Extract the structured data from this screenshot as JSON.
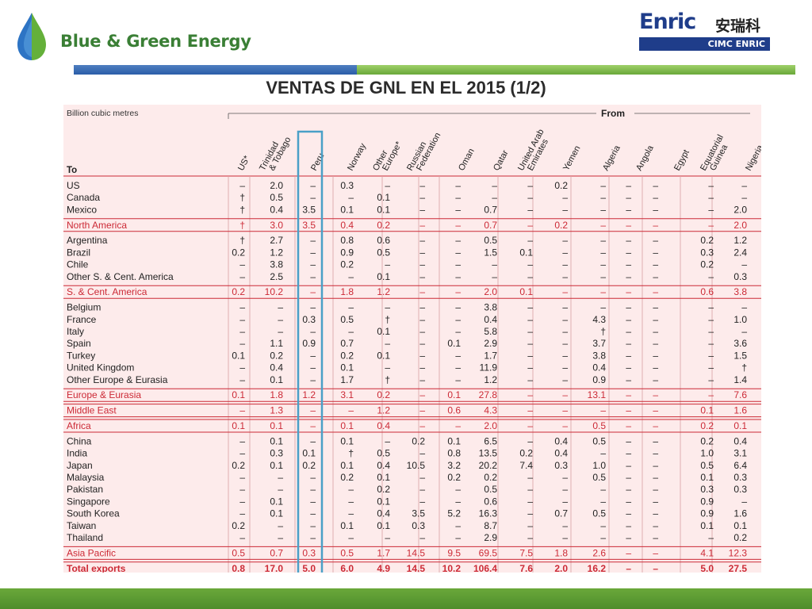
{
  "brand": {
    "name": "Blue & Green Energy",
    "partner_name": "Enric",
    "partner_chinese": "安瑞科",
    "partner_sub": "CIMC ENRIC"
  },
  "slide_title": "VENTAS DE GNL EN EL 2015 (1/2)",
  "colors": {
    "row_highlight": "#cc2a36",
    "panel_bg": "#fdebeb",
    "peru_box": "#4aa0c7",
    "title_green": "#3a7f35",
    "bar_blue": "#2a5da8",
    "bar_green": "#6aa83a"
  },
  "chart_data": {
    "type": "table",
    "unit_label": "Billion cubic metres",
    "from_label": "From",
    "row_header_label": "To",
    "columns": [
      "US*",
      "Trinidad & Tobago",
      "Peru",
      "Norway",
      "Other Europe*",
      "Russian Federation",
      "Oman",
      "Qatar",
      "United Arab Emirates",
      "Yemen",
      "Algeria",
      "Angola",
      "Egypt",
      "Equatorial Guinea",
      "Nigeria"
    ],
    "highlighted_column": "Peru",
    "rows": [
      {
        "label": "US",
        "type": "item",
        "values": [
          "–",
          "2.0",
          "–",
          "0.3",
          "–",
          "–",
          "–",
          "–",
          "–",
          "0.2",
          "–",
          "–",
          "–",
          "–",
          "–"
        ]
      },
      {
        "label": "Canada",
        "type": "item",
        "values": [
          "†",
          "0.5",
          "–",
          "–",
          "0.1",
          "–",
          "–",
          "–",
          "–",
          "–",
          "–",
          "–",
          "–",
          "–",
          "–"
        ]
      },
      {
        "label": "Mexico",
        "type": "item",
        "values": [
          "†",
          "0.4",
          "3.5",
          "0.1",
          "0.1",
          "–",
          "–",
          "0.7",
          "–",
          "–",
          "–",
          "–",
          "–",
          "–",
          "2.0"
        ]
      },
      {
        "label": "North America",
        "type": "total",
        "values": [
          "†",
          "3.0",
          "3.5",
          "0.4",
          "0.2",
          "–",
          "–",
          "0.7",
          "–",
          "0.2",
          "–",
          "–",
          "–",
          "–",
          "2.0"
        ]
      },
      {
        "label": "Argentina",
        "type": "item",
        "values": [
          "†",
          "2.7",
          "–",
          "0.8",
          "0.6",
          "–",
          "–",
          "0.5",
          "–",
          "–",
          "–",
          "–",
          "–",
          "0.2",
          "1.2"
        ]
      },
      {
        "label": "Brazil",
        "type": "item",
        "values": [
          "0.2",
          "1.2",
          "–",
          "0.9",
          "0.5",
          "–",
          "–",
          "1.5",
          "0.1",
          "–",
          "–",
          "–",
          "–",
          "0.3",
          "2.4"
        ]
      },
      {
        "label": "Chile",
        "type": "item",
        "values": [
          "–",
          "3.8",
          "–",
          "0.2",
          "–",
          "–",
          "–",
          "–",
          "–",
          "–",
          "–",
          "–",
          "–",
          "0.2",
          "–"
        ]
      },
      {
        "label": "Other S. & Cent. America",
        "type": "item",
        "values": [
          "–",
          "2.5",
          "–",
          "–",
          "0.1",
          "–",
          "–",
          "–",
          "–",
          "–",
          "–",
          "–",
          "–",
          "–",
          "0.3"
        ]
      },
      {
        "label": "S. & Cent. America",
        "type": "total",
        "values": [
          "0.2",
          "10.2",
          "–",
          "1.8",
          "1.2",
          "–",
          "–",
          "2.0",
          "0.1",
          "–",
          "–",
          "–",
          "–",
          "0.6",
          "3.8"
        ]
      },
      {
        "label": "Belgium",
        "type": "item",
        "values": [
          "–",
          "–",
          "–",
          "–",
          "–",
          "–",
          "–",
          "3.8",
          "–",
          "–",
          "–",
          "–",
          "–",
          "–",
          "–"
        ]
      },
      {
        "label": "France",
        "type": "item",
        "values": [
          "–",
          "–",
          "0.3",
          "0.5",
          "†",
          "–",
          "–",
          "0.4",
          "–",
          "–",
          "4.3",
          "–",
          "–",
          "–",
          "1.0"
        ]
      },
      {
        "label": "Italy",
        "type": "item",
        "values": [
          "–",
          "–",
          "–",
          "–",
          "0.1",
          "–",
          "–",
          "5.8",
          "–",
          "–",
          "†",
          "–",
          "–",
          "–",
          "–"
        ]
      },
      {
        "label": "Spain",
        "type": "item",
        "values": [
          "–",
          "1.1",
          "0.9",
          "0.7",
          "–",
          "–",
          "0.1",
          "2.9",
          "–",
          "–",
          "3.7",
          "–",
          "–",
          "–",
          "3.6"
        ]
      },
      {
        "label": "Turkey",
        "type": "item",
        "values": [
          "0.1",
          "0.2",
          "–",
          "0.2",
          "0.1",
          "–",
          "–",
          "1.7",
          "–",
          "–",
          "3.8",
          "–",
          "–",
          "–",
          "1.5"
        ]
      },
      {
        "label": "United Kingdom",
        "type": "item",
        "values": [
          "–",
          "0.4",
          "–",
          "0.1",
          "–",
          "–",
          "–",
          "11.9",
          "–",
          "–",
          "0.4",
          "–",
          "–",
          "–",
          "†"
        ]
      },
      {
        "label": "Other Europe & Eurasia",
        "type": "item",
        "values": [
          "–",
          "0.1",
          "–",
          "1.7",
          "†",
          "–",
          "–",
          "1.2",
          "–",
          "–",
          "0.9",
          "–",
          "–",
          "–",
          "1.4"
        ]
      },
      {
        "label": "Europe & Eurasia",
        "type": "total",
        "values": [
          "0.1",
          "1.8",
          "1.2",
          "3.1",
          "0.2",
          "–",
          "0.1",
          "27.8",
          "–",
          "–",
          "13.1",
          "–",
          "–",
          "–",
          "7.6"
        ]
      },
      {
        "label": "Middle East",
        "type": "total",
        "values": [
          "–",
          "1.3",
          "–",
          "–",
          "1.2",
          "–",
          "0.6",
          "4.3",
          "–",
          "–",
          "–",
          "–",
          "–",
          "0.1",
          "1.6"
        ]
      },
      {
        "label": "Africa",
        "type": "total",
        "values": [
          "0.1",
          "0.1",
          "–",
          "0.1",
          "0.4",
          "–",
          "–",
          "2.0",
          "–",
          "–",
          "0.5",
          "–",
          "–",
          "0.2",
          "0.1"
        ]
      },
      {
        "label": "China",
        "type": "item",
        "values": [
          "–",
          "0.1",
          "–",
          "0.1",
          "–",
          "0.2",
          "0.1",
          "6.5",
          "–",
          "0.4",
          "0.5",
          "–",
          "–",
          "0.2",
          "0.4"
        ]
      },
      {
        "label": "India",
        "type": "item",
        "values": [
          "–",
          "0.3",
          "0.1",
          "†",
          "0.5",
          "–",
          "0.8",
          "13.5",
          "0.2",
          "0.4",
          "–",
          "–",
          "–",
          "1.0",
          "3.1"
        ]
      },
      {
        "label": "Japan",
        "type": "item",
        "values": [
          "0.2",
          "0.1",
          "0.2",
          "0.1",
          "0.4",
          "10.5",
          "3.2",
          "20.2",
          "7.4",
          "0.3",
          "1.0",
          "–",
          "–",
          "0.5",
          "6.4"
        ]
      },
      {
        "label": "Malaysia",
        "type": "item",
        "values": [
          "–",
          "–",
          "–",
          "0.2",
          "0.1",
          "–",
          "0.2",
          "0.2",
          "–",
          "–",
          "0.5",
          "–",
          "–",
          "0.1",
          "0.3"
        ]
      },
      {
        "label": "Pakistan",
        "type": "item",
        "values": [
          "–",
          "–",
          "–",
          "–",
          "0.2",
          "–",
          "–",
          "0.5",
          "–",
          "–",
          "–",
          "–",
          "–",
          "0.3",
          "0.3"
        ]
      },
      {
        "label": "Singapore",
        "type": "item",
        "values": [
          "–",
          "0.1",
          "–",
          "–",
          "0.1",
          "–",
          "–",
          "0.6",
          "–",
          "–",
          "–",
          "–",
          "–",
          "0.9",
          "–"
        ]
      },
      {
        "label": "South Korea",
        "type": "item",
        "values": [
          "–",
          "0.1",
          "–",
          "–",
          "0.4",
          "3.5",
          "5.2",
          "16.3",
          "–",
          "0.7",
          "0.5",
          "–",
          "–",
          "0.9",
          "1.6"
        ]
      },
      {
        "label": "Taiwan",
        "type": "item",
        "values": [
          "0.2",
          "–",
          "–",
          "0.1",
          "0.1",
          "0.3",
          "–",
          "8.7",
          "–",
          "–",
          "–",
          "–",
          "–",
          "0.1",
          "0.1"
        ]
      },
      {
        "label": "Thailand",
        "type": "item",
        "values": [
          "–",
          "–",
          "–",
          "–",
          "–",
          "–",
          "–",
          "2.9",
          "–",
          "–",
          "–",
          "–",
          "–",
          "–",
          "0.2"
        ]
      },
      {
        "label": "Asia Pacific",
        "type": "total",
        "values": [
          "0.5",
          "0.7",
          "0.3",
          "0.5",
          "1.7",
          "14.5",
          "9.5",
          "69.5",
          "7.5",
          "1.8",
          "2.6",
          "–",
          "–",
          "4.1",
          "12.3"
        ]
      },
      {
        "label": "Total exports",
        "type": "grand",
        "values": [
          "0.8",
          "17.0",
          "5.0",
          "6.0",
          "4.9",
          "14.5",
          "10.2",
          "106.4",
          "7.6",
          "2.0",
          "16.2",
          "–",
          "–",
          "5.0",
          "27.5"
        ]
      }
    ]
  }
}
